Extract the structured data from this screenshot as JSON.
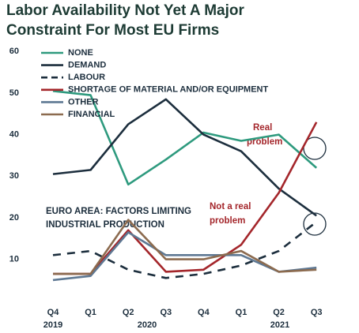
{
  "chart_data": {
    "type": "line",
    "title": [
      "Labor Availability Not Yet A Major",
      "Constraint For Most EU Firms"
    ],
    "categories": [
      "Q4",
      "Q1",
      "Q2",
      "Q3",
      "Q4",
      "Q1",
      "Q2",
      "Q3"
    ],
    "x_groups": [
      "2019",
      "2020",
      "2021"
    ],
    "series": [
      {
        "name": "NONE",
        "color": "#2e9a7e",
        "dashed": false,
        "values": [
          50.5,
          49.5,
          28,
          34,
          40.5,
          38.5,
          40,
          32
        ]
      },
      {
        "name": "DEMAND",
        "color": "#1c2e3d",
        "dashed": false,
        "values": [
          30.5,
          31.5,
          42.5,
          48.5,
          40,
          36,
          27,
          20.5
        ]
      },
      {
        "name": "LABOUR",
        "color": "#1c2e3d",
        "dashed": true,
        "values": [
          11,
          12,
          7.5,
          5.5,
          6.5,
          8.5,
          12,
          19
        ]
      },
      {
        "name": "SHORTAGE OF MATERIAL AND/OR EQUIPMENT",
        "color": "#a4262b",
        "dashed": false,
        "values": [
          6.5,
          6.5,
          17,
          7,
          7.5,
          13.5,
          26,
          43
        ]
      },
      {
        "name": "OTHER",
        "color": "#5e7893",
        "dashed": false,
        "values": [
          5,
          6,
          16.5,
          11,
          11,
          11,
          7,
          8
        ]
      },
      {
        "name": "FINANCIAL",
        "color": "#8c6b4f",
        "dashed": false,
        "values": [
          6.5,
          6.5,
          19.5,
          10,
          10,
          12,
          7,
          7.5
        ]
      }
    ],
    "ylim": [
      1,
      61
    ],
    "yticks": [
      10,
      20,
      30,
      40,
      50,
      60
    ],
    "grid": false,
    "annotations": [
      [
        "Real",
        "problem"
      ],
      [
        "Not a real",
        "problem"
      ],
      [
        "EURO AREA: FACTORS LIMITING",
        "INDUSTRIAL PRODUCTION"
      ]
    ]
  }
}
